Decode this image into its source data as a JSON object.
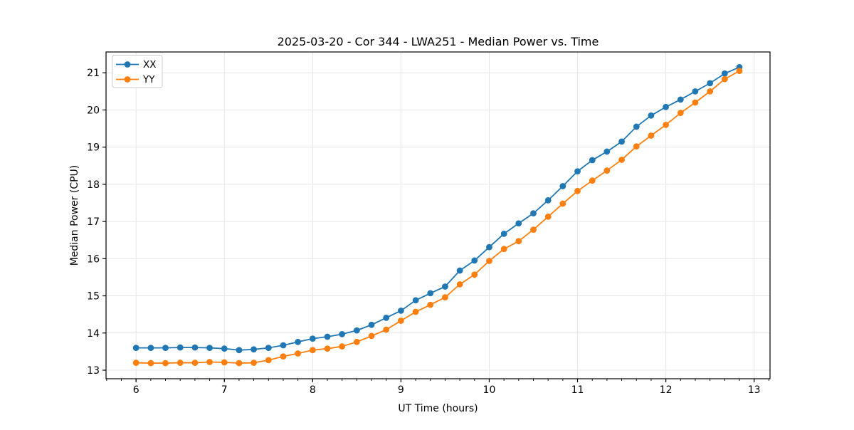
{
  "chart_data": {
    "type": "line",
    "title": "2025-03-20 - Cor 344 - LWA251 - Median Power vs. Time",
    "xlabel": "UT Time (hours)",
    "ylabel": "Median Power (CPU)",
    "x": [
      6.0,
      6.167,
      6.333,
      6.5,
      6.667,
      6.833,
      7.0,
      7.167,
      7.333,
      7.5,
      7.667,
      7.833,
      8.0,
      8.167,
      8.333,
      8.5,
      8.667,
      8.833,
      9.0,
      9.167,
      9.333,
      9.5,
      9.667,
      9.833,
      10.0,
      10.167,
      10.333,
      10.5,
      10.667,
      10.833,
      11.0,
      11.167,
      11.333,
      11.5,
      11.667,
      11.833,
      12.0,
      12.167,
      12.333,
      12.5,
      12.667,
      12.833
    ],
    "series": [
      {
        "name": "XX",
        "color": "#1f77b4",
        "values": [
          13.6,
          13.6,
          13.6,
          13.61,
          13.61,
          13.6,
          13.58,
          13.54,
          13.56,
          13.6,
          13.67,
          13.76,
          13.85,
          13.9,
          13.97,
          14.07,
          14.22,
          14.41,
          14.6,
          14.88,
          15.07,
          15.25,
          15.68,
          15.95,
          16.31,
          16.67,
          16.95,
          17.22,
          17.57,
          17.95,
          18.35,
          18.65,
          18.88,
          19.15,
          19.55,
          19.85,
          20.08,
          20.28,
          20.5,
          20.72,
          20.98,
          21.15
        ]
      },
      {
        "name": "YY",
        "color": "#ff7f0e",
        "values": [
          13.2,
          13.19,
          13.19,
          13.2,
          13.2,
          13.22,
          13.21,
          13.19,
          13.2,
          13.27,
          13.37,
          13.45,
          13.54,
          13.58,
          13.64,
          13.76,
          13.92,
          14.09,
          14.33,
          14.57,
          14.76,
          14.96,
          15.31,
          15.57,
          15.94,
          16.26,
          16.47,
          16.78,
          17.13,
          17.48,
          17.82,
          18.1,
          18.37,
          18.66,
          19.02,
          19.31,
          19.6,
          19.92,
          20.2,
          20.5,
          20.83,
          21.05
        ]
      }
    ],
    "xlim": [
      5.66,
      13.18
    ],
    "ylim": [
      12.77,
      21.56
    ],
    "xticks": [
      6,
      7,
      8,
      9,
      10,
      11,
      12,
      13
    ],
    "yticks": [
      13,
      14,
      15,
      16,
      17,
      18,
      19,
      20,
      21
    ],
    "x_minor_step": 0.1666667,
    "grid": true,
    "legend_position": "upper left"
  },
  "colors": {
    "grid": "#e6e6e6",
    "spine": "#000000",
    "background": "#ffffff",
    "legend_border": "#cccccc"
  }
}
